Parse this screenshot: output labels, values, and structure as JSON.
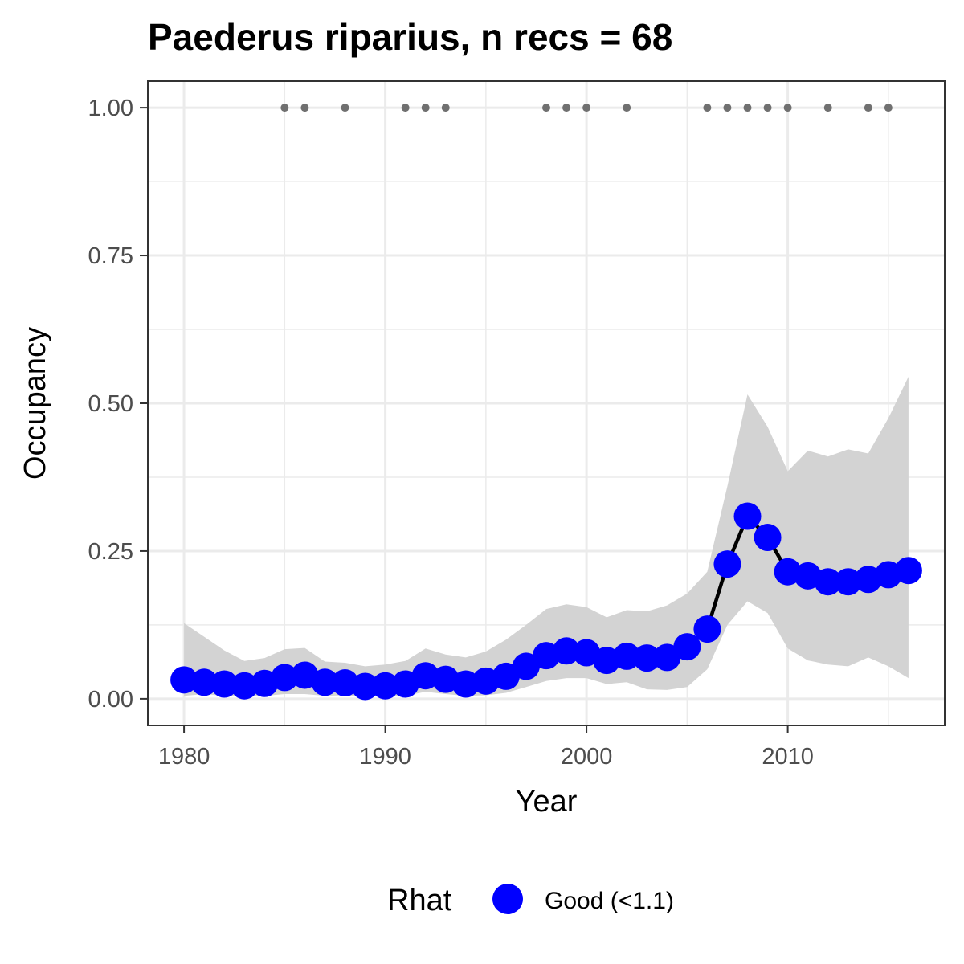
{
  "chart_data": {
    "type": "line",
    "title": "Paederus riparius, n recs = 68",
    "xlabel": "Year",
    "ylabel": "Occupancy",
    "xlim": [
      1978.2,
      2017.8
    ],
    "ylim": [
      -0.045,
      1.045
    ],
    "x_ticks": [
      1980,
      1990,
      2000,
      2010
    ],
    "x_tick_labels": [
      "1980",
      "1990",
      "2000",
      "2010"
    ],
    "y_ticks": [
      0,
      0.25,
      0.5,
      0.75,
      1.0
    ],
    "y_tick_labels": [
      "0.00",
      "0.25",
      "0.50",
      "0.75",
      "1.00"
    ],
    "grid": true,
    "colors": {
      "points": "#0000ff",
      "line": "#000000",
      "ribbon": "#d3d3d3",
      "records": "#707070",
      "grid": "#ebebeb",
      "axis_text": "#4d4d4d"
    },
    "series": [
      {
        "x": [
          1980,
          1981,
          1982,
          1983,
          1984,
          1985,
          1986,
          1987,
          1988,
          1989,
          1990,
          1991,
          1992,
          1993,
          1994,
          1995,
          1996,
          1997,
          1998,
          1999,
          2000,
          2001,
          2002,
          2003,
          2004,
          2005,
          2006,
          2007,
          2008,
          2009,
          2010,
          2011,
          2012,
          2013,
          2014,
          2015,
          2016
        ],
        "y": [
          0.032,
          0.028,
          0.025,
          0.022,
          0.026,
          0.036,
          0.04,
          0.028,
          0.027,
          0.021,
          0.022,
          0.025,
          0.039,
          0.033,
          0.025,
          0.03,
          0.038,
          0.055,
          0.073,
          0.081,
          0.078,
          0.065,
          0.072,
          0.069,
          0.07,
          0.088,
          0.118,
          0.228,
          0.309,
          0.273,
          0.215,
          0.208,
          0.198,
          0.198,
          0.202,
          0.21,
          0.217
        ],
        "lower": [
          0.005,
          0.008,
          0.005,
          0.004,
          0.005,
          0.008,
          0.008,
          0.005,
          0.006,
          0.004,
          0.004,
          0.005,
          0.012,
          0.008,
          0.005,
          0.006,
          0.01,
          0.02,
          0.03,
          0.035,
          0.035,
          0.025,
          0.028,
          0.016,
          0.015,
          0.02,
          0.05,
          0.125,
          0.165,
          0.145,
          0.085,
          0.065,
          0.058,
          0.055,
          0.07,
          0.055,
          0.035
        ],
        "upper": [
          0.128,
          0.105,
          0.082,
          0.064,
          0.069,
          0.084,
          0.086,
          0.063,
          0.061,
          0.055,
          0.058,
          0.064,
          0.085,
          0.075,
          0.07,
          0.08,
          0.1,
          0.125,
          0.152,
          0.16,
          0.155,
          0.138,
          0.15,
          0.148,
          0.158,
          0.178,
          0.215,
          0.36,
          0.515,
          0.46,
          0.385,
          0.42,
          0.41,
          0.422,
          0.415,
          0.475,
          0.545
        ]
      }
    ],
    "records": {
      "y": 1.0,
      "x": [
        1985,
        1986,
        1988,
        1991,
        1992,
        1993,
        1998,
        1999,
        2000,
        2002,
        2006,
        2007,
        2008,
        2009,
        2010,
        2012,
        2014,
        2015
      ]
    },
    "legend": {
      "position": "bottom",
      "title": "Rhat",
      "label": "Good (<1.1)"
    }
  }
}
